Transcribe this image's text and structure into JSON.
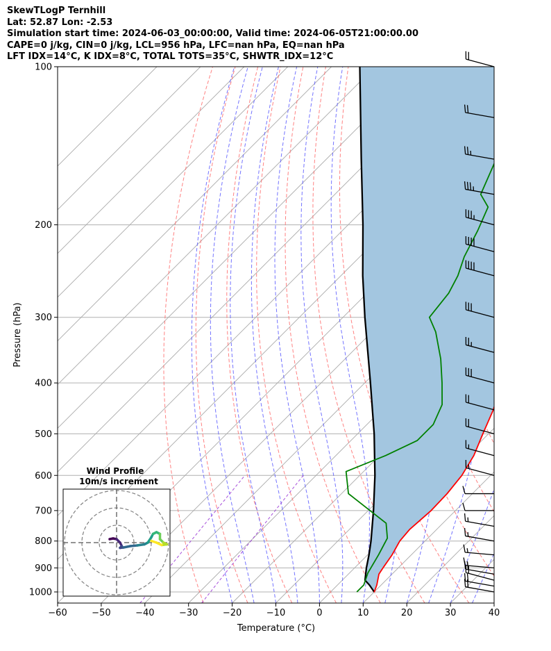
{
  "header": {
    "line1": "SkewTLogP Ternhill",
    "line2": "Lat: 52.87   Lon: -2.53",
    "line3": "Simulation start time: 2024-06-03_00:00:00, Valid time: 2024-06-05T21:00:00.00",
    "line4": "CAPE=0 j/kg, CIN=0 j/kg, LCL=956 hPa, LFC=nan hPa, EQ=nan hPa",
    "line5": "LFT IDX=14°C, K IDX=8°C, TOTAL TOTS=35°C, SHWTR_IDX=12°C"
  },
  "chart_data": {
    "type": "line",
    "kind": "skew-t log-p diagram",
    "xlabel": "Temperature (°C)",
    "ylabel": "Pressure (hPa)",
    "xlim": [
      -60,
      40
    ],
    "ylim": [
      1050,
      100
    ],
    "yscale": "log",
    "x_ticks": [
      -60,
      -50,
      -40,
      -30,
      -20,
      -10,
      0,
      10,
      20,
      30,
      40
    ],
    "x_tick_labels": [
      "−60",
      "−50",
      "−40",
      "−30",
      "−20",
      "−10",
      "0",
      "10",
      "20",
      "30",
      "40"
    ],
    "y_ticks": [
      100,
      200,
      300,
      400,
      500,
      600,
      700,
      800,
      900,
      1000
    ],
    "y_tick_labels": [
      "100",
      "200",
      "300",
      "400",
      "500",
      "600",
      "700",
      "800",
      "900",
      "1000"
    ],
    "grid": true,
    "colors": {
      "temperature": "#ff0000",
      "dewpoint": "#008000",
      "parcel": "#000000",
      "cape_fill": "#a3c6e0",
      "dry_adiabats": "#ff6b6b",
      "moist_adiabats": "#5a5aff",
      "mixing_ratio": "#9b3ad6",
      "isotherms": "#aaaaaa"
    },
    "series": [
      {
        "role": "temperature",
        "points": [
          {
            "p": 1000,
            "t": 10.0
          },
          {
            "p": 970,
            "t": 9.0
          },
          {
            "p": 925,
            "t": 7.0
          },
          {
            "p": 900,
            "t": 6.5
          },
          {
            "p": 850,
            "t": 5.6
          },
          {
            "p": 800,
            "t": 4.2
          },
          {
            "p": 760,
            "t": 3.8
          },
          {
            "p": 700,
            "t": 4.4
          },
          {
            "p": 650,
            "t": 4.2
          },
          {
            "p": 600,
            "t": 3.4
          },
          {
            "p": 550,
            "t": 1.6
          },
          {
            "p": 500,
            "t": -1.3
          },
          {
            "p": 450,
            "t": -4.4
          },
          {
            "p": 400,
            "t": -8.7
          },
          {
            "p": 350,
            "t": -13.5
          },
          {
            "p": 310,
            "t": -18.8
          },
          {
            "p": 285,
            "t": -22.9
          },
          {
            "p": 270,
            "t": -24.8
          },
          {
            "p": 250,
            "t": -26.0
          },
          {
            "p": 230,
            "t": -28.0
          },
          {
            "p": 200,
            "t": -33.0
          },
          {
            "p": 170,
            "t": -39.0
          },
          {
            "p": 150,
            "t": -44.8
          },
          {
            "p": 130,
            "t": -53.2
          },
          {
            "p": 115,
            "t": -58.7
          },
          {
            "p": 100,
            "t": -65.7
          }
        ]
      },
      {
        "role": "dewpoint",
        "points": [
          {
            "p": 1000,
            "t": 6.0
          },
          {
            "p": 970,
            "t": 6.0
          },
          {
            "p": 920,
            "t": 4.2
          },
          {
            "p": 850,
            "t": 2.5
          },
          {
            "p": 790,
            "t": 0.7
          },
          {
            "p": 740,
            "t": -3.0
          },
          {
            "p": 650,
            "t": -18.4
          },
          {
            "p": 590,
            "t": -24.0
          },
          {
            "p": 550,
            "t": -18.6
          },
          {
            "p": 515,
            "t": -14.8
          },
          {
            "p": 480,
            "t": -14.8
          },
          {
            "p": 440,
            "t": -17.3
          },
          {
            "p": 400,
            "t": -22.3
          },
          {
            "p": 360,
            "t": -28.1
          },
          {
            "p": 320,
            "t": -35.4
          },
          {
            "p": 300,
            "t": -40.2
          },
          {
            "p": 270,
            "t": -41.3
          },
          {
            "p": 250,
            "t": -43.2
          },
          {
            "p": 230,
            "t": -46.1
          },
          {
            "p": 205,
            "t": -49.0
          },
          {
            "p": 185,
            "t": -52.0
          },
          {
            "p": 175,
            "t": -56.6
          },
          {
            "p": 150,
            "t": -61.1
          },
          {
            "p": 125,
            "t": -67.1
          },
          {
            "p": 100,
            "t": -75.8
          }
        ]
      },
      {
        "role": "parcel",
        "points": [
          {
            "p": 1000,
            "t": 10.0
          },
          {
            "p": 970,
            "t": 7.3
          },
          {
            "p": 950,
            "t": 5.2
          },
          {
            "p": 900,
            "t": 2.7
          },
          {
            "p": 850,
            "t": 0.3
          },
          {
            "p": 800,
            "t": -2.4
          },
          {
            "p": 700,
            "t": -8.8
          },
          {
            "p": 600,
            "t": -16.5
          },
          {
            "p": 500,
            "t": -26.2
          },
          {
            "p": 400,
            "t": -38.7
          },
          {
            "p": 300,
            "t": -55.0
          },
          {
            "p": 250,
            "t": -65.0
          },
          {
            "p": 200,
            "t": -76.6
          },
          {
            "p": 150,
            "t": -92.0
          },
          {
            "p": 100,
            "t": -113.5
          }
        ]
      }
    ],
    "wind_barbs": [
      {
        "p": 1000,
        "dir": 280,
        "kt": 20
      },
      {
        "p": 975,
        "dir": 280,
        "kt": 22
      },
      {
        "p": 950,
        "dir": 285,
        "kt": 22
      },
      {
        "p": 925,
        "dir": 280,
        "kt": 20
      },
      {
        "p": 900,
        "dir": 275,
        "kt": 15
      },
      {
        "p": 850,
        "dir": 275,
        "kt": 15
      },
      {
        "p": 800,
        "dir": 280,
        "kt": 15
      },
      {
        "p": 750,
        "dir": 280,
        "kt": 15
      },
      {
        "p": 700,
        "dir": 270,
        "kt": 10
      },
      {
        "p": 650,
        "dir": 270,
        "kt": 10
      },
      {
        "p": 600,
        "dir": 285,
        "kt": 15
      },
      {
        "p": 550,
        "dir": 285,
        "kt": 15
      },
      {
        "p": 500,
        "dir": 285,
        "kt": 20
      },
      {
        "p": 450,
        "dir": 285,
        "kt": 20
      },
      {
        "p": 400,
        "dir": 285,
        "kt": 30
      },
      {
        "p": 350,
        "dir": 285,
        "kt": 25
      },
      {
        "p": 300,
        "dir": 285,
        "kt": 30
      },
      {
        "p": 250,
        "dir": 285,
        "kt": 40
      },
      {
        "p": 225,
        "dir": 285,
        "kt": 40
      },
      {
        "p": 200,
        "dir": 285,
        "kt": 35
      },
      {
        "p": 175,
        "dir": 280,
        "kt": 35
      },
      {
        "p": 150,
        "dir": 280,
        "kt": 25
      },
      {
        "p": 125,
        "dir": 280,
        "kt": 20
      },
      {
        "p": 100,
        "dir": 285,
        "kt": 20
      }
    ],
    "hodograph": {
      "title": "Wind Profile",
      "subtitle": "10m/s increment",
      "rings_ms": [
        10,
        20,
        30
      ],
      "points": [
        {
          "u": -4,
          "v": 2
        },
        {
          "u": -2,
          "v": 2.4
        },
        {
          "u": 0,
          "v": 2
        },
        {
          "u": 2,
          "v": 0
        },
        {
          "u": 3,
          "v": -2
        },
        {
          "u": 2,
          "v": -3
        },
        {
          "u": 4,
          "v": -2.8
        },
        {
          "u": 8,
          "v": -2
        },
        {
          "u": 12,
          "v": -1.6
        },
        {
          "u": 16,
          "v": -1
        },
        {
          "u": 18,
          "v": 0
        },
        {
          "u": 20,
          "v": 3
        },
        {
          "u": 21,
          "v": 5
        },
        {
          "u": 23,
          "v": 6
        },
        {
          "u": 25,
          "v": 5
        },
        {
          "u": 25,
          "v": 2
        },
        {
          "u": 27,
          "v": 0
        },
        {
          "u": 29,
          "v": -1
        },
        {
          "u": 26,
          "v": -1.4
        },
        {
          "u": 23,
          "v": 0
        },
        {
          "u": 20,
          "v": 1
        }
      ]
    }
  }
}
